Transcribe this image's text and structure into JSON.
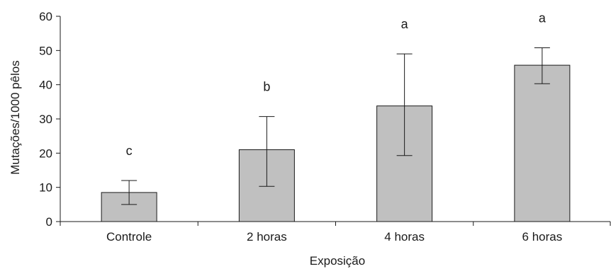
{
  "chart_data": {
    "type": "bar",
    "title": "",
    "xlabel": "Exposição",
    "ylabel": "Mutações/1000 pêlos",
    "categories": [
      "Controle",
      "2 horas",
      "4 horas",
      "6 horas"
    ],
    "values": [
      8.5,
      21.0,
      33.8,
      45.7
    ],
    "error_low": [
      5.0,
      10.3,
      19.3,
      40.3
    ],
    "error_high": [
      12.0,
      30.7,
      49.0,
      50.8
    ],
    "significance_labels": [
      "c",
      "b",
      "a",
      "a"
    ],
    "ylim": [
      0,
      60
    ],
    "yticks": [
      0,
      10,
      20,
      30,
      40,
      50,
      60
    ],
    "grid": false,
    "legend": "none",
    "bar_color": "#c0c0c0",
    "bar_edge_color": "#1a1a1a"
  }
}
